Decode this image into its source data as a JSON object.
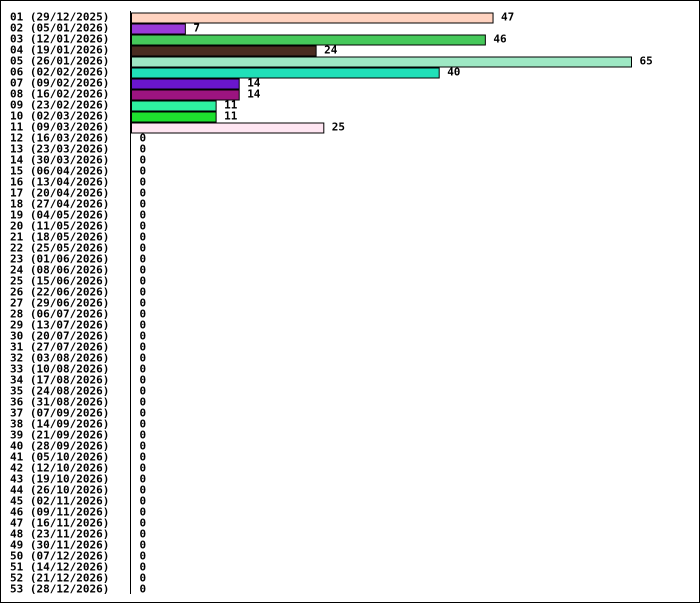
{
  "chart_data": {
    "type": "bar",
    "orientation": "horizontal",
    "title": "",
    "xlabel": "",
    "ylabel": "",
    "grid": false,
    "xlim": [
      0,
      65
    ],
    "categories": [
      "01 (29/12/2025)",
      "02 (05/01/2026)",
      "03 (12/01/2026)",
      "04 (19/01/2026)",
      "05 (26/01/2026)",
      "06 (02/02/2026)",
      "07 (09/02/2026)",
      "08 (16/02/2026)",
      "09 (23/02/2026)",
      "10 (02/03/2026)",
      "11 (09/03/2026)",
      "12 (16/03/2026)",
      "13 (23/03/2026)",
      "14 (30/03/2026)",
      "15 (06/04/2026)",
      "16 (13/04/2026)",
      "17 (20/04/2026)",
      "18 (27/04/2026)",
      "19 (04/05/2026)",
      "20 (11/05/2026)",
      "21 (18/05/2026)",
      "22 (25/05/2026)",
      "23 (01/06/2026)",
      "24 (08/06/2026)",
      "25 (15/06/2026)",
      "26 (22/06/2026)",
      "27 (29/06/2026)",
      "28 (06/07/2026)",
      "29 (13/07/2026)",
      "30 (20/07/2026)",
      "31 (27/07/2026)",
      "32 (03/08/2026)",
      "33 (10/08/2026)",
      "34 (17/08/2026)",
      "35 (24/08/2026)",
      "36 (31/08/2026)",
      "37 (07/09/2026)",
      "38 (14/09/2026)",
      "39 (21/09/2026)",
      "40 (28/09/2026)",
      "41 (05/10/2026)",
      "42 (12/10/2026)",
      "43 (19/10/2026)",
      "44 (26/10/2026)",
      "45 (02/11/2026)",
      "46 (09/11/2026)",
      "47 (16/11/2026)",
      "48 (23/11/2026)",
      "49 (30/11/2026)",
      "50 (07/12/2026)",
      "51 (14/12/2026)",
      "52 (21/12/2026)",
      "53 (28/12/2026)"
    ],
    "values": [
      47,
      7,
      46,
      24,
      65,
      40,
      14,
      14,
      11,
      11,
      25,
      0,
      0,
      0,
      0,
      0,
      0,
      0,
      0,
      0,
      0,
      0,
      0,
      0,
      0,
      0,
      0,
      0,
      0,
      0,
      0,
      0,
      0,
      0,
      0,
      0,
      0,
      0,
      0,
      0,
      0,
      0,
      0,
      0,
      0,
      0,
      0,
      0,
      0,
      0,
      0,
      0,
      0
    ],
    "colors": [
      "#ffd3c0",
      "#9a3ad8",
      "#46c85a",
      "#4a2c20",
      "#9ee8c4",
      "#20e0b8",
      "#6a16cc",
      "#9c1480",
      "#2ef0a0",
      "#1ee02e",
      "#ffe6f2"
    ]
  }
}
